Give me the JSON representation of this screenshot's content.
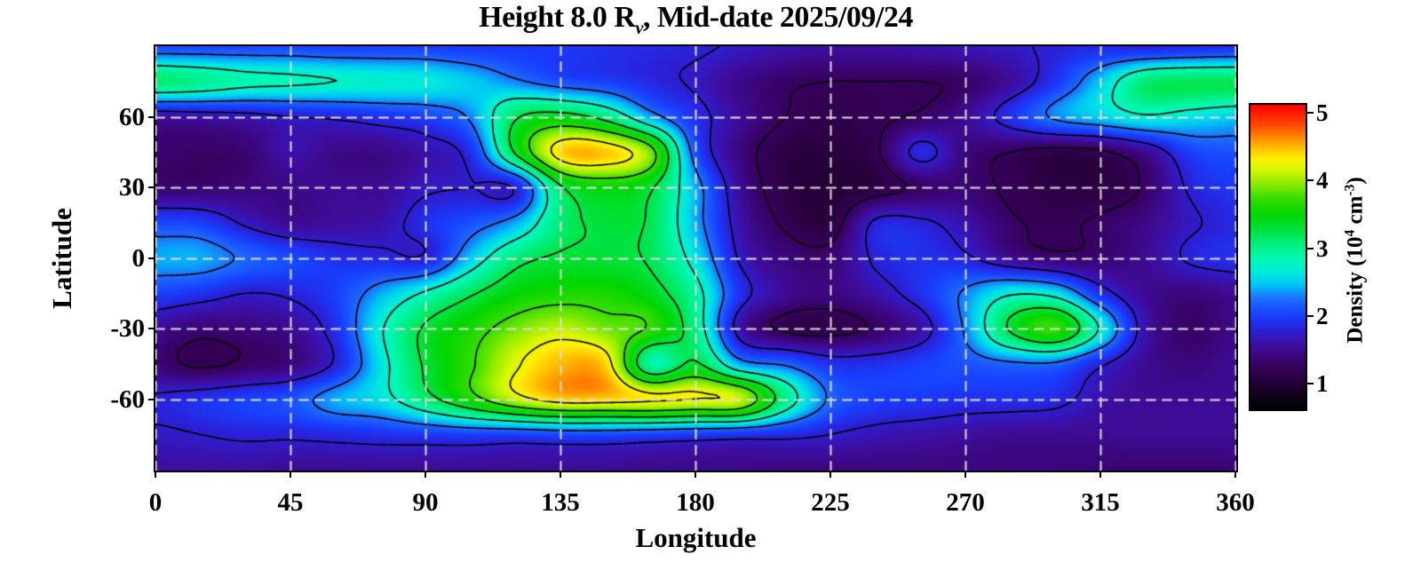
{
  "figure": {
    "title": {
      "prefix": "Height 8.0 R",
      "subscript": "v",
      "suffix": ", Mid-date 2025/09/24"
    },
    "x_axis": {
      "label": "Longitude",
      "tick_values": [
        0,
        45,
        90,
        135,
        180,
        225,
        270,
        315,
        360
      ]
    },
    "y_axis": {
      "label": "Latitude",
      "tick_values": [
        60,
        30,
        0,
        -30,
        -60
      ]
    },
    "colorbar": {
      "label": {
        "prefix": "Density (10",
        "sup1": "4",
        "mid": " cm",
        "sup2": "-3",
        "suffix": ")"
      },
      "tick_values": [
        5,
        4,
        3,
        2,
        1
      ],
      "range": [
        0.62,
        5.12
      ]
    }
  },
  "chart_data": {
    "type": "heatmap",
    "title": "Height 8.0 R_v, Mid-date 2025/09/24",
    "xlabel": "Longitude",
    "ylabel": "Latitude",
    "zlabel": "Density (10^4 cm^-3)",
    "x_range": [
      0,
      360
    ],
    "y_range": [
      -90,
      90
    ],
    "legend_position": "right-colorbar",
    "grid_on": true,
    "lon": [
      0,
      15,
      30,
      45,
      60,
      75,
      90,
      105,
      120,
      135,
      150,
      165,
      180,
      195,
      210,
      225,
      240,
      255,
      270,
      285,
      300,
      315,
      330,
      345,
      360
    ],
    "lat": [
      90,
      75,
      60,
      45,
      30,
      15,
      0,
      -15,
      -30,
      -45,
      -60,
      -75,
      -90
    ],
    "values": [
      [
        2.05,
        2.05,
        2.05,
        2.05,
        2.0,
        2.0,
        2.0,
        1.95,
        1.95,
        1.95,
        1.9,
        1.85,
        1.8,
        1.7,
        1.6,
        1.55,
        1.55,
        1.6,
        1.65,
        1.7,
        1.8,
        1.85,
        1.8,
        1.85,
        1.9
      ],
      [
        3.1,
        3.0,
        2.85,
        2.8,
        2.75,
        2.7,
        2.65,
        2.5,
        2.3,
        2.1,
        2.0,
        1.85,
        1.7,
        1.45,
        1.3,
        1.25,
        1.25,
        1.25,
        1.3,
        1.55,
        1.95,
        2.5,
        3.1,
        3.2,
        3.2
      ],
      [
        1.55,
        1.6,
        1.65,
        1.75,
        1.8,
        1.9,
        2.0,
        2.3,
        3.2,
        3.4,
        3.1,
        2.4,
        1.9,
        1.5,
        1.25,
        1.15,
        1.2,
        1.3,
        1.5,
        1.9,
        2.3,
        2.5,
        2.7,
        2.6,
        2.5
      ],
      [
        1.35,
        1.3,
        1.35,
        1.6,
        1.45,
        1.45,
        1.6,
        1.9,
        3.3,
        4.4,
        4.45,
        3.9,
        2.1,
        1.4,
        1.1,
        1.05,
        1.2,
        1.85,
        1.4,
        1.25,
        1.15,
        1.2,
        1.5,
        2.0,
        2.1
      ],
      [
        1.35,
        1.35,
        1.4,
        1.45,
        1.5,
        1.5,
        1.7,
        1.75,
        1.8,
        3.2,
        3.5,
        3.3,
        2.4,
        1.5,
        1.1,
        1.0,
        1.1,
        1.3,
        1.35,
        1.2,
        1.1,
        1.1,
        1.3,
        1.8,
        1.95
      ],
      [
        2.05,
        2.0,
        1.7,
        1.5,
        1.55,
        1.6,
        1.9,
        2.1,
        2.4,
        3.1,
        3.3,
        3.2,
        2.4,
        1.6,
        1.2,
        1.1,
        1.8,
        1.8,
        1.6,
        1.3,
        1.2,
        1.3,
        1.45,
        1.7,
        1.85
      ],
      [
        2.4,
        2.4,
        2.2,
        2.05,
        1.9,
        1.85,
        1.8,
        2.5,
        3.1,
        3.3,
        3.3,
        3.2,
        2.6,
        1.7,
        1.4,
        1.35,
        1.8,
        1.9,
        1.8,
        1.5,
        1.35,
        1.35,
        1.5,
        1.8,
        1.9
      ],
      [
        2.0,
        1.9,
        1.75,
        1.8,
        2.0,
        2.4,
        2.8,
        3.2,
        3.5,
        3.6,
        3.6,
        3.4,
        2.9,
        1.9,
        1.5,
        1.4,
        1.6,
        1.9,
        2.3,
        2.7,
        2.6,
        1.9,
        1.5,
        1.4,
        1.5
      ],
      [
        1.5,
        1.35,
        1.4,
        1.5,
        1.9,
        2.7,
        3.3,
        3.6,
        3.9,
        4.1,
        3.9,
        3.7,
        3.0,
        1.6,
        1.2,
        1.15,
        1.3,
        1.6,
        2.3,
        3.3,
        3.7,
        2.7,
        1.6,
        1.3,
        1.45
      ],
      [
        1.35,
        1.2,
        1.3,
        1.4,
        1.8,
        2.6,
        3.3,
        3.7,
        4.2,
        4.5,
        4.4,
        2.9,
        3.3,
        2.4,
        2.2,
        1.9,
        1.9,
        2.0,
        2.1,
        2.2,
        2.2,
        1.8,
        1.5,
        1.4,
        1.5
      ],
      [
        1.8,
        1.9,
        2.0,
        2.1,
        2.4,
        2.6,
        3.1,
        3.6,
        4.1,
        4.4,
        4.4,
        4.3,
        4.25,
        4.1,
        3.0,
        2.2,
        2.0,
        1.95,
        1.9,
        1.9,
        1.85,
        1.6,
        1.5,
        1.5,
        1.5
      ],
      [
        1.7,
        1.75,
        1.8,
        1.8,
        1.85,
        1.9,
        1.95,
        2.0,
        2.0,
        2.05,
        2.05,
        2.0,
        1.95,
        1.9,
        1.85,
        1.75,
        1.65,
        1.6,
        1.55,
        1.5,
        1.5,
        1.5,
        1.5,
        1.5,
        1.5
      ],
      [
        1.55,
        1.55,
        1.55,
        1.5,
        1.5,
        1.5,
        1.5,
        1.5,
        1.5,
        1.5,
        1.5,
        1.45,
        1.45,
        1.45,
        1.4,
        1.4,
        1.4,
        1.4,
        1.4,
        1.4,
        1.4,
        1.35,
        1.35,
        1.35,
        1.35
      ]
    ],
    "contour_levels": [
      1.25,
      1.75,
      2.25,
      2.75,
      3.25,
      3.75,
      4.25
    ],
    "contour_color": "#000000",
    "gridlines": {
      "lon": [
        0,
        45,
        90,
        135,
        180,
        225,
        270,
        315,
        360
      ],
      "lat": [
        -60,
        -30,
        0,
        30,
        60
      ],
      "style": "dashed-light"
    },
    "gridline_color": "#dcdcdc",
    "colorbar_range": [
      0.62,
      5.12
    ],
    "colormap": [
      [
        0.62,
        "#000000"
      ],
      [
        0.95,
        "#20002e"
      ],
      [
        1.25,
        "#37005c"
      ],
      [
        1.55,
        "#3e0d9e"
      ],
      [
        1.8,
        "#2b21d8"
      ],
      [
        2.0,
        "#173fff"
      ],
      [
        2.25,
        "#1e6dff"
      ],
      [
        2.45,
        "#00c2f5"
      ],
      [
        2.62,
        "#00e8e0"
      ],
      [
        2.82,
        "#00f8b8"
      ],
      [
        3.05,
        "#00ef82"
      ],
      [
        3.25,
        "#00e446"
      ],
      [
        3.5,
        "#00d600"
      ],
      [
        3.75,
        "#3bdd00"
      ],
      [
        4.0,
        "#9dee00"
      ],
      [
        4.18,
        "#dcf800"
      ],
      [
        4.32,
        "#fff000"
      ],
      [
        4.47,
        "#ffc400"
      ],
      [
        4.62,
        "#ff9000"
      ],
      [
        4.82,
        "#ff4a00"
      ],
      [
        5.12,
        "#ff0000"
      ]
    ]
  }
}
